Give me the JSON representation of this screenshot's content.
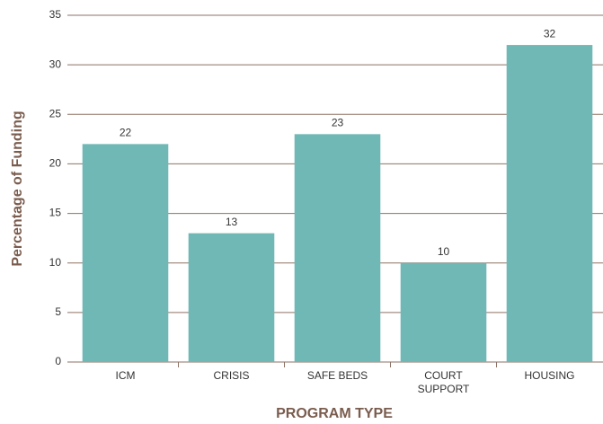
{
  "chart_data": {
    "type": "bar",
    "xlabel": "PROGRAM TYPE",
    "ylabel": "Percentage of Funding",
    "categories": [
      "ICM",
      "CRISIS",
      "SAFE BEDS",
      "COURT SUPPORT",
      "HOUSING"
    ],
    "values": [
      22,
      13,
      23,
      10,
      32
    ],
    "color": "#6fb8b5",
    "ylim": [
      0,
      35
    ],
    "yticks": [
      0,
      5,
      10,
      15,
      20,
      25,
      30,
      35
    ],
    "grid": true,
    "grid_color": "#8d7264"
  }
}
